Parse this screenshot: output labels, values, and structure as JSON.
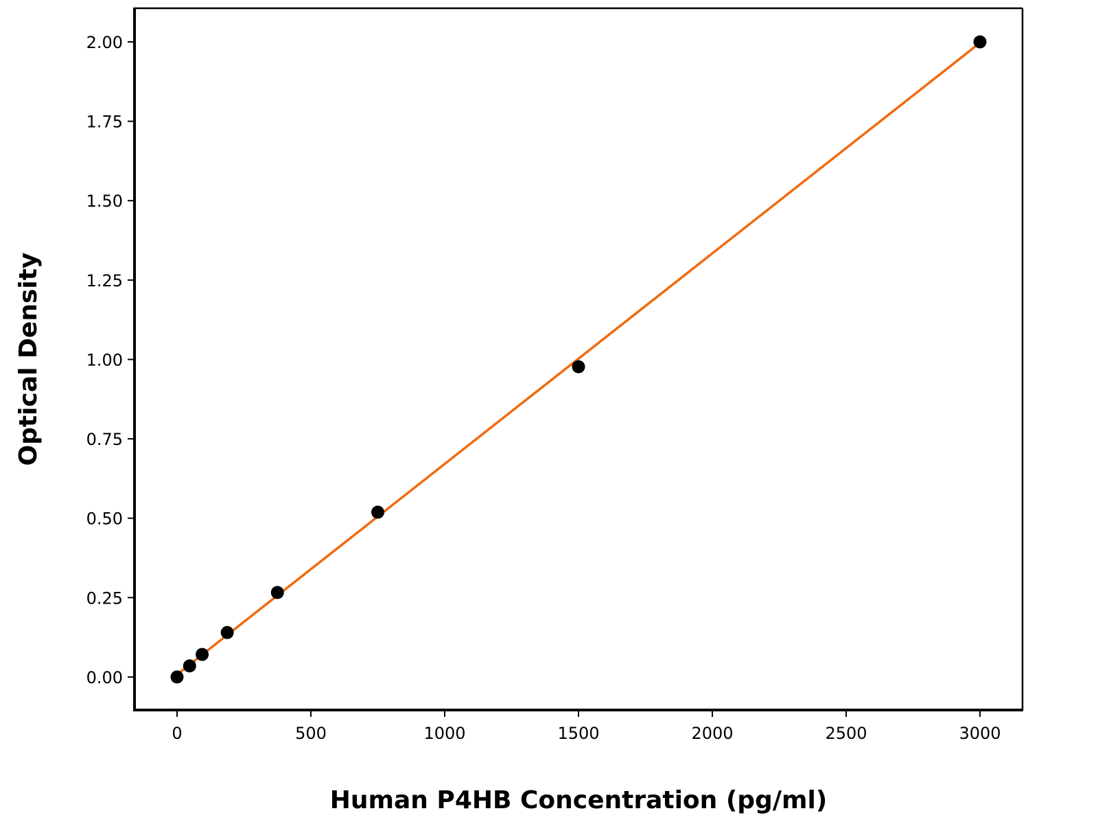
{
  "chart_data": {
    "type": "scatter",
    "title": "",
    "xlabel": "Human P4HB Concentration (pg/ml)",
    "ylabel": "Optical Density",
    "xlim": [
      -159,
      3159
    ],
    "ylim": [
      -0.104,
      2.106
    ],
    "xticks": [
      0,
      500,
      1000,
      1500,
      2000,
      2500,
      3000
    ],
    "xtick_labels": [
      "0",
      "500",
      "1000",
      "1500",
      "2000",
      "2500",
      "3000"
    ],
    "yticks": [
      0,
      0.25,
      0.5,
      0.75,
      1.0,
      1.25,
      1.5,
      1.75,
      2.0
    ],
    "ytick_labels": [
      "0.00",
      "0.25",
      "0.50",
      "0.75",
      "1.00",
      "1.25",
      "1.50",
      "1.75",
      "2.00"
    ],
    "grid": false,
    "points": {
      "x": [
        0,
        46.875,
        93.75,
        187.5,
        375,
        750,
        1500,
        3000
      ],
      "y": [
        0.0,
        0.035,
        0.071,
        0.14,
        0.266,
        0.519,
        0.977,
        2.0
      ],
      "color": "#000000"
    },
    "fit_line": {
      "x": [
        0,
        3000
      ],
      "y": [
        0.008,
        1.997
      ],
      "color": "#f06a0f"
    }
  }
}
